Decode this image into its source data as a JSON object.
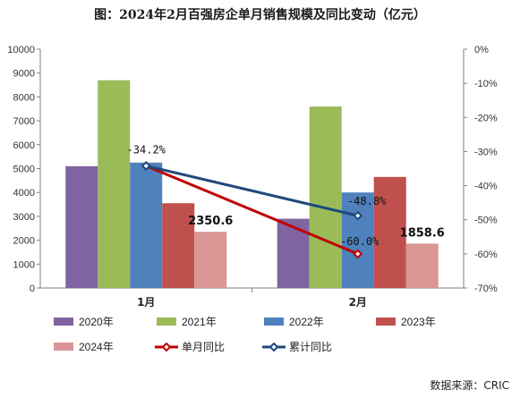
{
  "chart_data": {
    "type": "bar",
    "title": "图：2024年2月百强房企单月销售规模及同比变动（亿元）",
    "categories": [
      "1月",
      "2月"
    ],
    "series": [
      {
        "name": "2020年",
        "kind": "bar",
        "color": "#8064a2",
        "values": [
          5100,
          2900
        ]
      },
      {
        "name": "2021年",
        "kind": "bar",
        "color": "#9bbb59",
        "values": [
          8700,
          7600
        ]
      },
      {
        "name": "2022年",
        "kind": "bar",
        "color": "#4f81bd",
        "values": [
          5250,
          4000
        ]
      },
      {
        "name": "2023年",
        "kind": "bar",
        "color": "#c0504d",
        "values": [
          3550,
          4650
        ]
      },
      {
        "name": "2024年",
        "kind": "bar",
        "color": "#d99694",
        "values": [
          2350.6,
          1858.6
        ]
      },
      {
        "name": "单月同比",
        "kind": "line",
        "axis": "right",
        "color": "#c00000",
        "values": [
          -34.2,
          -60.0
        ]
      },
      {
        "name": "累计同比",
        "kind": "line",
        "axis": "right",
        "color": "#1f497d",
        "values": [
          -34.2,
          -48.8
        ]
      }
    ],
    "ylim_left": [
      0,
      10000
    ],
    "yticks_left": [
      "0",
      "1000",
      "2000",
      "3000",
      "4000",
      "5000",
      "6000",
      "7000",
      "8000",
      "9000",
      "10000"
    ],
    "ylim_right": [
      -70,
      0
    ],
    "yticks_right": [
      "0%",
      "-10%",
      "-20%",
      "-30%",
      "-40%",
      "-50%",
      "-60%",
      "-70%"
    ],
    "bar_labels": [
      "2350.6",
      "1858.6"
    ],
    "line_labels": [
      "-34.2%",
      "-60.0%",
      "-48.8%"
    ],
    "legend_position": "bottom",
    "grid": false
  },
  "source_note": "数据来源：CRIC"
}
